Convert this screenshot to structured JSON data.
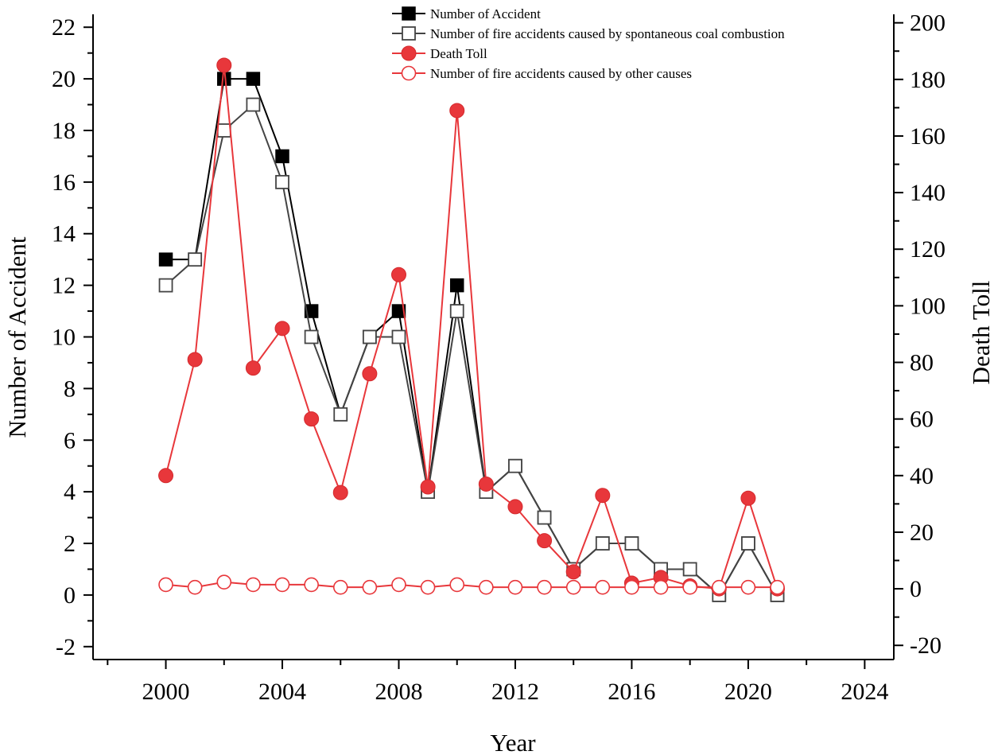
{
  "chart_data": {
    "type": "line",
    "title": "",
    "xlabel": "Year",
    "ylabel": "Number of Accident",
    "y2label": "Death Toll",
    "xlim": [
      1997.5,
      2025
    ],
    "ylim": [
      -2.5,
      22.5
    ],
    "y2lim": [
      -25,
      203
    ],
    "xticks": [
      2000,
      2004,
      2008,
      2012,
      2016,
      2020,
      2024
    ],
    "yticks": [
      -2,
      0,
      2,
      4,
      6,
      8,
      10,
      12,
      14,
      16,
      18,
      20,
      22
    ],
    "y2ticks": [
      -20,
      0,
      20,
      40,
      60,
      80,
      100,
      120,
      140,
      160,
      180,
      200
    ],
    "grid": false,
    "legend_position": "top-center",
    "series": [
      {
        "name": "Number of Accident",
        "axis": "left",
        "color": "#000000",
        "marker": "filled-square",
        "x": [
          2000,
          2001,
          2002,
          2003,
          2004,
          2005,
          2006,
          2007,
          2008,
          2009,
          2010,
          2011,
          2012,
          2013,
          2014,
          2015,
          2016,
          2017,
          2018,
          2019,
          2020,
          2021
        ],
        "values": [
          13,
          13,
          20,
          20,
          17,
          11,
          7,
          10,
          11,
          4,
          12,
          4,
          5,
          3,
          1,
          2,
          2,
          1,
          1,
          0,
          2,
          0
        ]
      },
      {
        "name": "Number of fire accidents caused by spontaneous coal combustion",
        "axis": "left",
        "color": "#444444",
        "marker": "open-square",
        "x": [
          2000,
          2001,
          2002,
          2003,
          2004,
          2005,
          2006,
          2007,
          2008,
          2009,
          2010,
          2011,
          2012,
          2013,
          2014,
          2015,
          2016,
          2017,
          2018,
          2019,
          2020,
          2021
        ],
        "values": [
          12,
          13,
          18,
          19,
          16,
          10,
          7,
          10,
          10,
          4,
          11,
          4,
          5,
          3,
          1,
          2,
          2,
          1,
          1,
          0,
          2,
          0
        ]
      },
      {
        "name": "Death Toll",
        "axis": "right",
        "color": "#e8373b",
        "marker": "filled-circle",
        "x": [
          2000,
          2001,
          2002,
          2003,
          2004,
          2005,
          2006,
          2007,
          2008,
          2009,
          2010,
          2011,
          2012,
          2013,
          2014,
          2015,
          2016,
          2017,
          2018,
          2019,
          2020,
          2021
        ],
        "values": [
          40,
          81,
          185,
          78,
          92,
          60,
          34,
          76,
          111,
          36,
          169,
          37,
          29,
          17,
          6,
          33,
          2,
          4,
          1,
          0,
          32,
          0
        ]
      },
      {
        "name": "Number of fire accidents caused by other causes",
        "axis": "left",
        "color": "#e8373b",
        "marker": "open-circle",
        "x": [
          2000,
          2001,
          2002,
          2003,
          2004,
          2005,
          2006,
          2007,
          2008,
          2009,
          2010,
          2011,
          2012,
          2013,
          2014,
          2015,
          2016,
          2017,
          2018,
          2019,
          2020,
          2021
        ],
        "values": [
          0.4,
          0.3,
          0.5,
          0.4,
          0.4,
          0.4,
          0.3,
          0.3,
          0.4,
          0.3,
          0.4,
          0.3,
          0.3,
          0.3,
          0.3,
          0.3,
          0.3,
          0.3,
          0.3,
          0.3,
          0.3,
          0.3
        ]
      }
    ]
  }
}
